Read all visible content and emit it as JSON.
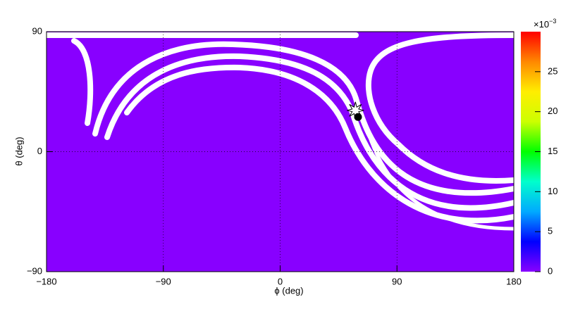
{
  "chart_data": {
    "type": "skymap",
    "x_label": "ϕ (deg)",
    "y_label": "θ (deg)",
    "xlim": [
      -180,
      180
    ],
    "xticks": [
      {
        "value": -180,
        "label": "−180"
      },
      {
        "value": -90,
        "label": "−90"
      },
      0,
      90,
      180
    ],
    "ylim": [
      -90,
      90
    ],
    "yticks": [
      {
        "value": -90,
        "label": "−90"
      },
      0,
      90
    ],
    "background_color": "#8800ff",
    "colorbar": {
      "zlim": [
        0,
        30
      ],
      "zticks": [
        0,
        5,
        10,
        15,
        20,
        25
      ],
      "exponent_base": "×10",
      "exponent": "−3"
    },
    "markers": [
      {
        "shape": "star",
        "phi": 58,
        "theta": 31
      },
      {
        "shape": "dot",
        "phi": 60,
        "theta": 26
      }
    ],
    "grid": true
  }
}
